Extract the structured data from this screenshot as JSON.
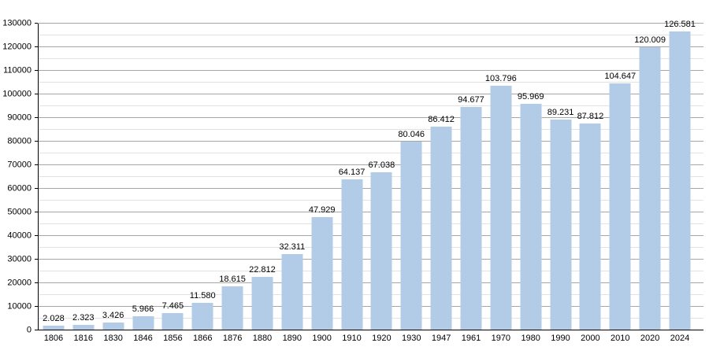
{
  "chart_data": {
    "type": "bar",
    "title": "",
    "xlabel": "",
    "ylabel": "",
    "categories": [
      "1806",
      "1816",
      "1830",
      "1846",
      "1856",
      "1866",
      "1876",
      "1880",
      "1890",
      "1900",
      "1910",
      "1920",
      "1930",
      "1947",
      "1961",
      "1970",
      "1980",
      "1990",
      "2000",
      "2010",
      "2020",
      "2024"
    ],
    "values": [
      2028,
      2323,
      3426,
      5966,
      7465,
      11580,
      18615,
      22812,
      32311,
      47929,
      64137,
      67038,
      80046,
      86412,
      94677,
      103796,
      95969,
      89231,
      87812,
      104647,
      120009,
      126581
    ],
    "value_labels": [
      "2.028",
      "2.323",
      "3.426",
      "5.966",
      "7.465",
      "11.580",
      "18.615",
      "22.812",
      "32.311",
      "47.929",
      "64.137",
      "67.038",
      "80.046",
      "86.412",
      "94.677",
      "103.796",
      "95.969",
      "89.231",
      "87.812",
      "104.647",
      "120.009",
      "126.581"
    ],
    "ylim": [
      0,
      130000
    ],
    "y_major_step": 10000,
    "y_minor_step": 5000,
    "y_tick_labels": [
      "0",
      "10000",
      "20000",
      "30000",
      "40000",
      "50000",
      "60000",
      "70000",
      "80000",
      "90000",
      "100000",
      "110000",
      "120000",
      "130000"
    ],
    "grid": true,
    "legend_position": "none"
  },
  "colors": {
    "background": "#ffffff",
    "bar_fill": "#b2cbe6",
    "grid_major": "#a6a6a6",
    "grid_minor": "#e2e2e2",
    "axis": "#000000",
    "text": "#000000"
  }
}
